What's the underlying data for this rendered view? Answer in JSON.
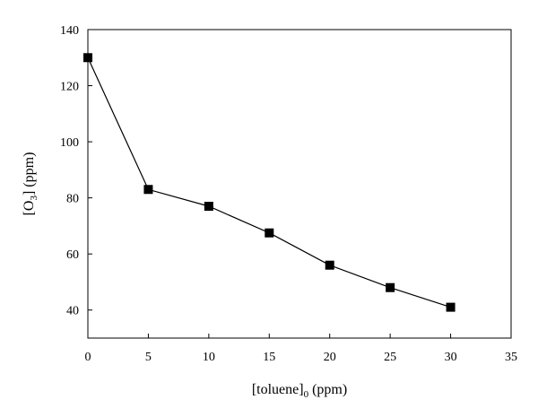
{
  "chart_data": {
    "type": "line",
    "title": "",
    "xlabel": {
      "main": "[toluene]",
      "subscript": "0",
      "suffix": " (ppm)"
    },
    "ylabel": {
      "open": "[O",
      "subscript": "3",
      "close": "] (ppm)"
    },
    "xlim": [
      0,
      35
    ],
    "ylim": [
      30,
      140
    ],
    "xticks": [
      0,
      5,
      10,
      15,
      20,
      25,
      30,
      35
    ],
    "yticks": [
      40,
      60,
      80,
      100,
      120,
      140
    ],
    "grid": false,
    "series": [
      {
        "marker": "square",
        "color": "#000000",
        "x": [
          0,
          5,
          10,
          15,
          20,
          25,
          30
        ],
        "y": [
          130,
          83,
          77,
          67.5,
          56,
          48,
          41
        ]
      }
    ]
  }
}
